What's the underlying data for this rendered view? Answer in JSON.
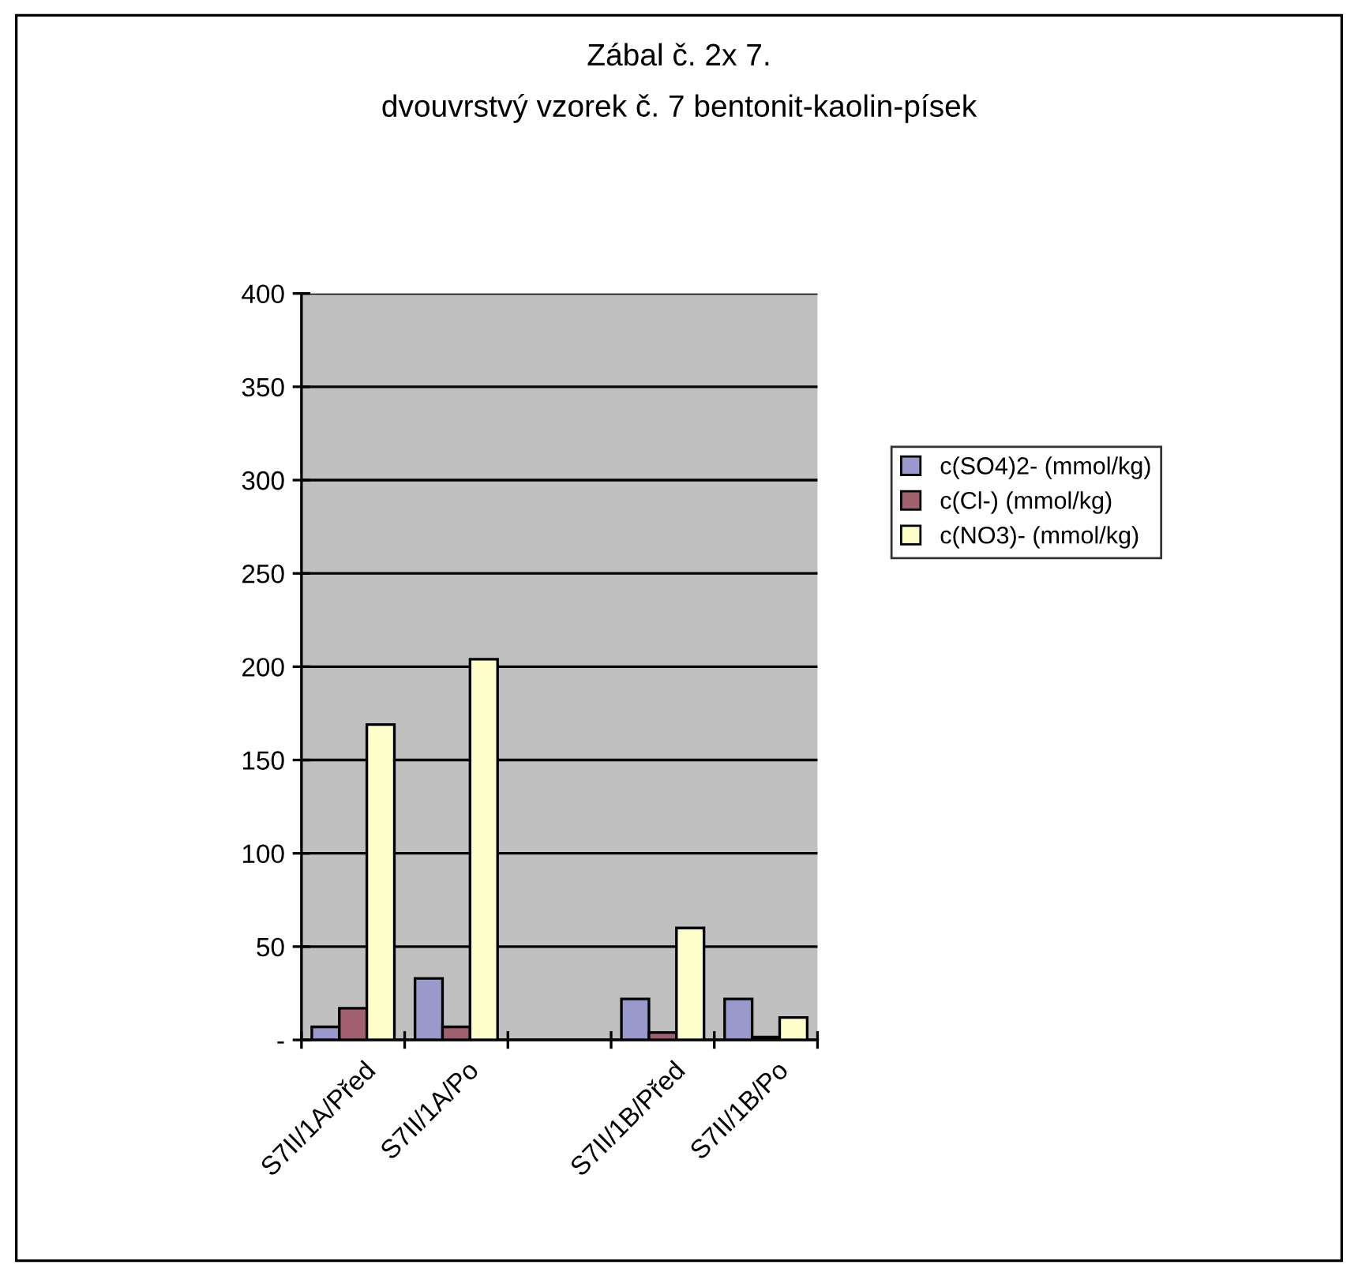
{
  "chart_data": {
    "type": "bar",
    "title": "Zábal č. 2x 7.",
    "subtitle": "dvouvrstvý vzorek č. 7 bentonit-kaolin-písek",
    "categories": [
      "S7II/1A/Před",
      "S7II/1A/Po",
      null,
      "S7II/1B/Před",
      "S7II/1B/Po"
    ],
    "series": [
      {
        "name": "c(SO4)2- (mmol/kg)",
        "color": "#9999cc",
        "values": [
          7,
          33,
          null,
          22,
          22
        ]
      },
      {
        "name": "c(Cl-) (mmol/kg)",
        "color": "#a0606e",
        "values": [
          17,
          7,
          null,
          4,
          1.5
        ]
      },
      {
        "name": "c(NO3)- (mmol/kg)",
        "color": "#ffffcc",
        "values": [
          169,
          204,
          null,
          60,
          12
        ]
      }
    ],
    "ylim": [
      0,
      400
    ],
    "yticks": [
      {
        "value": 0,
        "label": "-"
      },
      50,
      100,
      150,
      200,
      250,
      300,
      350,
      400
    ],
    "grid": "y",
    "legend": "right"
  }
}
